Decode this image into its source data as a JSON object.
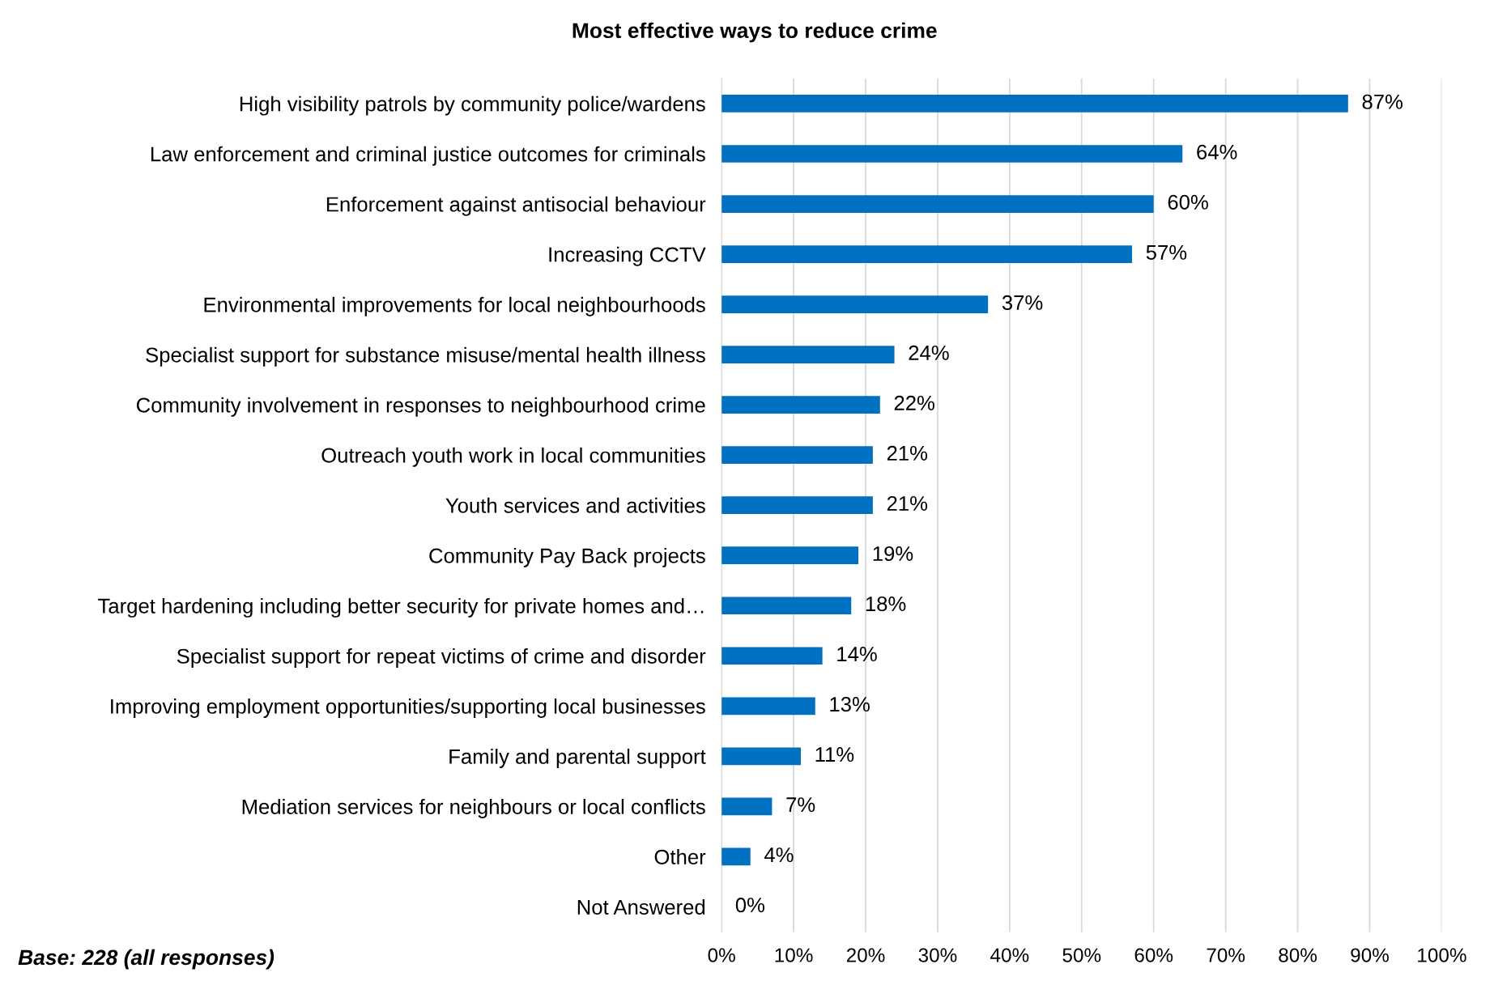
{
  "chart_data": {
    "type": "bar",
    "orientation": "horizontal",
    "title": "Most effective ways to reduce crime",
    "categories": [
      "High visibility patrols by community police/wardens",
      "Law enforcement and criminal justice outcomes for criminals",
      "Enforcement against antisocial behaviour",
      "Increasing CCTV",
      "Environmental improvements for local neighbourhoods",
      "Specialist support for substance misuse/mental health illness",
      "Community involvement in responses to neighbourhood crime",
      "Outreach youth work in local communities",
      "Youth services and activities",
      "Community Pay Back projects",
      "Target hardening including better security for private homes and…",
      "Specialist support for repeat victims of crime and disorder",
      "Improving employment opportunities/supporting local businesses",
      "Family and parental support",
      "Mediation services for neighbours or local conflicts",
      "Other",
      "Not Answered"
    ],
    "values": [
      87,
      64,
      60,
      57,
      37,
      24,
      22,
      21,
      21,
      19,
      18,
      14,
      13,
      11,
      7,
      4,
      0
    ],
    "value_labels": [
      "87%",
      "64%",
      "60%",
      "57%",
      "37%",
      "24%",
      "22%",
      "21%",
      "21%",
      "19%",
      "18%",
      "14%",
      "13%",
      "11%",
      "7%",
      "4%",
      "0%"
    ],
    "color": "#0070c0",
    "xlim": [
      0,
      100
    ],
    "xticks": [
      {
        "value": 0,
        "label": "0%"
      },
      {
        "value": 10,
        "label": "10%"
      },
      {
        "value": 20,
        "label": "20%"
      },
      {
        "value": 30,
        "label": "30%"
      },
      {
        "value": 40,
        "label": "40%"
      },
      {
        "value": 50,
        "label": "50%"
      },
      {
        "value": 60,
        "label": "60%"
      },
      {
        "value": 70,
        "label": "70%"
      },
      {
        "value": 80,
        "label": "80%"
      },
      {
        "value": 90,
        "label": "90%"
      },
      {
        "value": 100,
        "label": "100%"
      }
    ],
    "grid": "x",
    "annotations": [
      "Base: 228 (all responses)"
    ]
  }
}
